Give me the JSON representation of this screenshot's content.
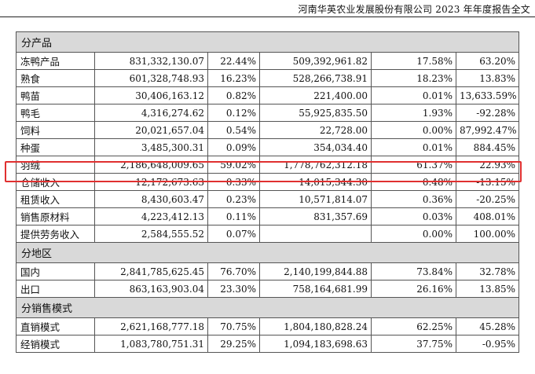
{
  "header": {
    "text": "河南华英农业发展股份有限公司 2023 年年度报告全文"
  },
  "sections": [
    {
      "title": "分产品",
      "rows": [
        {
          "name": "冻鸭产品",
          "revenue": "831,332,130.07",
          "share": "22.44%",
          "prev_revenue": "509,392,961.82",
          "prev_share": "17.58%",
          "change": "63.20%"
        },
        {
          "name": "熟食",
          "revenue": "601,328,748.93",
          "share": "16.23%",
          "prev_revenue": "528,266,738.91",
          "prev_share": "18.23%",
          "change": "13.83%"
        },
        {
          "name": "鸭苗",
          "revenue": "30,406,163.12",
          "share": "0.82%",
          "prev_revenue": "221,400.00",
          "prev_share": "0.01%",
          "change": "13,633.59%"
        },
        {
          "name": "鸭毛",
          "revenue": "4,316,274.62",
          "share": "0.12%",
          "prev_revenue": "55,925,835.50",
          "prev_share": "1.93%",
          "change": "-92.28%"
        },
        {
          "name": "饲料",
          "revenue": "20,021,657.04",
          "share": "0.54%",
          "prev_revenue": "22,728.00",
          "prev_share": "0.00%",
          "change": "87,992.47%"
        },
        {
          "name": "种蛋",
          "revenue": "3,485,300.31",
          "share": "0.09%",
          "prev_revenue": "354,034.40",
          "prev_share": "0.01%",
          "change": "884.45%"
        },
        {
          "name": "羽绒",
          "revenue": "2,186,648,009.65",
          "share": "59.02%",
          "prev_revenue": "1,778,762,312.18",
          "prev_share": "61.37%",
          "change": "22.93%"
        },
        {
          "name": "仓储收入",
          "revenue": "12,172,673.63",
          "share": "0.33%",
          "prev_revenue": "14,015,344.30",
          "prev_share": "0.48%",
          "change": "-13.15%"
        },
        {
          "name": "租赁收入",
          "revenue": "8,430,603.47",
          "share": "0.23%",
          "prev_revenue": "10,571,814.07",
          "prev_share": "0.36%",
          "change": "-20.25%"
        },
        {
          "name": "销售原材料",
          "revenue": "4,223,412.13",
          "share": "0.11%",
          "prev_revenue": "831,357.69",
          "prev_share": "0.03%",
          "change": "408.01%"
        },
        {
          "name": "提供劳务收入",
          "revenue": "2,584,555.52",
          "share": "0.07%",
          "prev_revenue": "",
          "prev_share": "0.00%",
          "change": "100.00%"
        }
      ]
    },
    {
      "title": "分地区",
      "rows": [
        {
          "name": "国内",
          "revenue": "2,841,785,625.45",
          "share": "76.70%",
          "prev_revenue": "2,140,199,844.88",
          "prev_share": "73.84%",
          "change": "32.78%"
        },
        {
          "name": "出口",
          "revenue": "863,163,903.04",
          "share": "23.30%",
          "prev_revenue": "758,164,681.99",
          "prev_share": "26.16%",
          "change": "13.85%"
        }
      ]
    },
    {
      "title": "分销售模式",
      "rows": [
        {
          "name": "直销模式",
          "revenue": "2,621,168,777.18",
          "share": "70.75%",
          "prev_revenue": "1,804,180,828.24",
          "prev_share": "62.25%",
          "change": "45.28%"
        },
        {
          "name": "经销模式",
          "revenue": "1,083,780,751.31",
          "share": "29.25%",
          "prev_revenue": "1,094,183,698.63",
          "prev_share": "37.75%",
          "change": "-0.95%"
        }
      ]
    }
  ],
  "highlight": {
    "row_name": "羽绒",
    "color": "#e03030"
  }
}
